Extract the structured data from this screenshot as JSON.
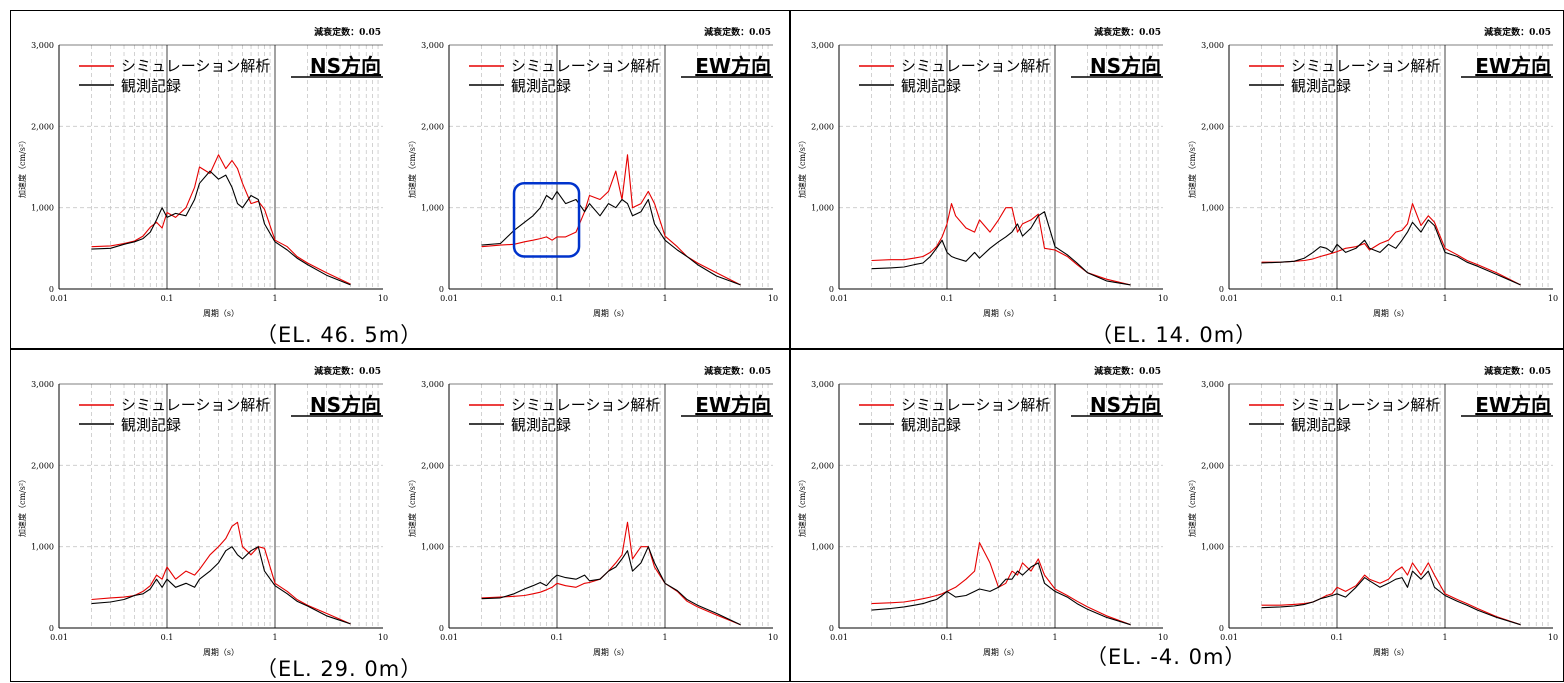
{
  "common": {
    "damping_label": "減衰定数：0.05",
    "ylabel": "加速度（cm/s²）",
    "xlabel": "周期（s）",
    "legend_sim": "シミュレーション解析",
    "legend_obs": "観測記録",
    "colors": {
      "simulation": "#e60000",
      "observed": "#000000",
      "highlight": "#0033cc"
    },
    "xscale": "log",
    "xlim": [
      0.01,
      10
    ],
    "ylim": [
      0,
      3000
    ],
    "x_ticks": [
      "0.01",
      "0.1",
      "1",
      "10"
    ],
    "y_ticks": [
      "0",
      "1,000",
      "2,000",
      "3,000"
    ]
  },
  "panels": [
    {
      "caption": "（EL. 46. 5m）"
    },
    {
      "caption": "（EL. 14. 0m）"
    },
    {
      "caption": "（EL. 29. 0m）"
    },
    {
      "caption": "（EL. -4. 0m）"
    }
  ],
  "chart_data": [
    {
      "type": "line",
      "panel": "EL. 46. 5m",
      "direction": "NS方向",
      "xscale": "log",
      "xlim": [
        0.01,
        10
      ],
      "ylim": [
        0,
        3000
      ],
      "series": [
        {
          "name": "シミュレーション解析",
          "x": [
            0.02,
            0.03,
            0.04,
            0.05,
            0.06,
            0.07,
            0.08,
            0.09,
            0.1,
            0.12,
            0.15,
            0.18,
            0.2,
            0.25,
            0.3,
            0.35,
            0.4,
            0.45,
            0.5,
            0.6,
            0.7,
            0.8,
            1.0,
            1.3,
            1.6,
            2.0,
            3.0,
            5.0
          ],
          "y": [
            520,
            530,
            560,
            590,
            650,
            760,
            820,
            750,
            940,
            880,
            1000,
            1250,
            1500,
            1420,
            1650,
            1480,
            1580,
            1480,
            1300,
            1050,
            1080,
            980,
            600,
            520,
            400,
            320,
            200,
            60
          ]
        },
        {
          "name": "観測記録",
          "x": [
            0.02,
            0.03,
            0.04,
            0.05,
            0.06,
            0.07,
            0.08,
            0.09,
            0.1,
            0.12,
            0.15,
            0.18,
            0.2,
            0.25,
            0.3,
            0.35,
            0.4,
            0.45,
            0.5,
            0.6,
            0.7,
            0.8,
            1.0,
            1.3,
            1.6,
            2.0,
            3.0,
            5.0
          ],
          "y": [
            490,
            500,
            550,
            580,
            620,
            700,
            850,
            1000,
            880,
            930,
            900,
            1100,
            1300,
            1450,
            1350,
            1400,
            1250,
            1050,
            1000,
            1150,
            1100,
            800,
            580,
            480,
            380,
            300,
            170,
            50
          ]
        }
      ]
    },
    {
      "type": "line",
      "panel": "EL. 46. 5m",
      "direction": "EW方向",
      "xscale": "log",
      "xlim": [
        0.01,
        10
      ],
      "ylim": [
        0,
        3000
      ],
      "series": [
        {
          "name": "シミュレーション解析",
          "x": [
            0.02,
            0.03,
            0.04,
            0.05,
            0.06,
            0.07,
            0.08,
            0.09,
            0.1,
            0.12,
            0.15,
            0.18,
            0.2,
            0.25,
            0.3,
            0.35,
            0.4,
            0.45,
            0.5,
            0.6,
            0.7,
            0.8,
            1.0,
            1.3,
            1.6,
            2.0,
            3.0,
            5.0
          ],
          "y": [
            520,
            540,
            550,
            580,
            600,
            620,
            640,
            600,
            640,
            640,
            700,
            950,
            1150,
            1100,
            1200,
            1450,
            1100,
            1650,
            1000,
            1050,
            1200,
            1050,
            650,
            520,
            400,
            320,
            200,
            50
          ]
        },
        {
          "name": "観測記録",
          "x": [
            0.02,
            0.03,
            0.04,
            0.05,
            0.06,
            0.07,
            0.08,
            0.09,
            0.1,
            0.12,
            0.15,
            0.18,
            0.2,
            0.25,
            0.3,
            0.35,
            0.4,
            0.45,
            0.5,
            0.6,
            0.7,
            0.8,
            1.0,
            1.3,
            1.6,
            2.0,
            3.0,
            5.0
          ],
          "y": [
            540,
            560,
            720,
            820,
            900,
            1000,
            1150,
            1100,
            1200,
            1050,
            1100,
            950,
            1050,
            900,
            1050,
            1000,
            1100,
            1050,
            900,
            950,
            1100,
            800,
            600,
            480,
            400,
            300,
            160,
            50
          ]
        }
      ]
    },
    {
      "type": "line",
      "panel": "EL. 14. 0m",
      "direction": "NS方向",
      "xscale": "log",
      "xlim": [
        0.01,
        10
      ],
      "ylim": [
        0,
        3000
      ],
      "series": [
        {
          "name": "シミュレーション解析",
          "x": [
            0.02,
            0.03,
            0.04,
            0.05,
            0.06,
            0.07,
            0.08,
            0.09,
            0.1,
            0.11,
            0.12,
            0.15,
            0.18,
            0.2,
            0.25,
            0.3,
            0.35,
            0.4,
            0.45,
            0.5,
            0.6,
            0.7,
            0.8,
            1.0,
            1.3,
            1.6,
            2.0,
            3.0,
            5.0
          ],
          "y": [
            350,
            360,
            360,
            380,
            400,
            450,
            520,
            640,
            800,
            1050,
            900,
            750,
            700,
            850,
            700,
            850,
            1000,
            1000,
            700,
            800,
            850,
            920,
            500,
            480,
            400,
            300,
            200,
            120,
            50
          ]
        },
        {
          "name": "観測記録",
          "x": [
            0.02,
            0.03,
            0.04,
            0.05,
            0.06,
            0.07,
            0.08,
            0.09,
            0.1,
            0.11,
            0.12,
            0.15,
            0.18,
            0.2,
            0.25,
            0.3,
            0.35,
            0.4,
            0.45,
            0.5,
            0.6,
            0.7,
            0.8,
            1.0,
            1.3,
            1.6,
            2.0,
            3.0,
            5.0
          ],
          "y": [
            250,
            260,
            270,
            300,
            320,
            400,
            500,
            600,
            450,
            400,
            380,
            340,
            450,
            380,
            500,
            580,
            640,
            700,
            800,
            650,
            750,
            900,
            950,
            520,
            420,
            320,
            200,
            100,
            50
          ]
        }
      ]
    },
    {
      "type": "line",
      "panel": "EL. 14. 0m",
      "direction": "EW方向",
      "xscale": "log",
      "xlim": [
        0.01,
        10
      ],
      "ylim": [
        0,
        3000
      ],
      "series": [
        {
          "name": "シミュレーション解析",
          "x": [
            0.02,
            0.03,
            0.04,
            0.05,
            0.06,
            0.07,
            0.08,
            0.09,
            0.1,
            0.12,
            0.15,
            0.18,
            0.2,
            0.25,
            0.3,
            0.35,
            0.4,
            0.45,
            0.5,
            0.6,
            0.7,
            0.8,
            1.0,
            1.3,
            1.6,
            2.0,
            3.0,
            5.0
          ],
          "y": [
            330,
            330,
            340,
            350,
            370,
            400,
            420,
            440,
            460,
            500,
            520,
            560,
            480,
            560,
            600,
            700,
            720,
            800,
            1050,
            780,
            900,
            820,
            500,
            420,
            350,
            300,
            200,
            50
          ]
        },
        {
          "name": "観測記録",
          "x": [
            0.02,
            0.03,
            0.04,
            0.05,
            0.06,
            0.07,
            0.08,
            0.09,
            0.1,
            0.12,
            0.15,
            0.18,
            0.2,
            0.25,
            0.3,
            0.35,
            0.4,
            0.45,
            0.5,
            0.6,
            0.7,
            0.8,
            1.0,
            1.3,
            1.6,
            2.0,
            3.0,
            5.0
          ],
          "y": [
            320,
            330,
            340,
            380,
            450,
            520,
            500,
            450,
            550,
            450,
            500,
            600,
            500,
            450,
            550,
            500,
            600,
            700,
            820,
            700,
            850,
            780,
            450,
            400,
            330,
            280,
            180,
            50
          ]
        }
      ]
    },
    {
      "type": "line",
      "panel": "EL. 29. 0m",
      "direction": "NS方向",
      "xscale": "log",
      "xlim": [
        0.01,
        10
      ],
      "ylim": [
        0,
        3000
      ],
      "series": [
        {
          "name": "シミュレーション解析",
          "x": [
            0.02,
            0.03,
            0.04,
            0.05,
            0.06,
            0.07,
            0.08,
            0.09,
            0.1,
            0.12,
            0.15,
            0.18,
            0.2,
            0.25,
            0.3,
            0.35,
            0.4,
            0.45,
            0.5,
            0.6,
            0.7,
            0.8,
            1.0,
            1.3,
            1.6,
            2.0,
            3.0,
            5.0
          ],
          "y": [
            350,
            370,
            380,
            400,
            450,
            520,
            650,
            600,
            750,
            600,
            700,
            650,
            720,
            900,
            1000,
            1100,
            1250,
            1300,
            1000,
            900,
            1000,
            980,
            550,
            450,
            350,
            280,
            180,
            50
          ]
        },
        {
          "name": "観測記録",
          "x": [
            0.02,
            0.03,
            0.04,
            0.05,
            0.06,
            0.07,
            0.08,
            0.09,
            0.1,
            0.12,
            0.15,
            0.18,
            0.2,
            0.25,
            0.3,
            0.35,
            0.4,
            0.45,
            0.5,
            0.6,
            0.7,
            0.8,
            1.0,
            1.3,
            1.6,
            2.0,
            3.0,
            5.0
          ],
          "y": [
            300,
            320,
            350,
            400,
            420,
            480,
            600,
            500,
            600,
            500,
            550,
            500,
            600,
            700,
            800,
            950,
            1000,
            900,
            850,
            950,
            1000,
            700,
            520,
            420,
            330,
            270,
            150,
            50
          ]
        }
      ]
    },
    {
      "type": "line",
      "panel": "EL. 29. 0m",
      "direction": "EW方向",
      "xscale": "log",
      "xlim": [
        0.01,
        10
      ],
      "ylim": [
        0,
        3000
      ],
      "series": [
        {
          "name": "シミュレーション解析",
          "x": [
            0.02,
            0.03,
            0.04,
            0.05,
            0.06,
            0.07,
            0.08,
            0.09,
            0.1,
            0.12,
            0.15,
            0.18,
            0.2,
            0.25,
            0.3,
            0.35,
            0.4,
            0.45,
            0.5,
            0.6,
            0.7,
            0.8,
            1.0,
            1.3,
            1.6,
            2.0,
            3.0,
            5.0
          ],
          "y": [
            370,
            380,
            390,
            400,
            420,
            440,
            470,
            500,
            550,
            520,
            500,
            550,
            560,
            600,
            700,
            800,
            900,
            1300,
            850,
            1000,
            1000,
            750,
            550,
            450,
            330,
            260,
            160,
            40
          ]
        },
        {
          "name": "観測記録",
          "x": [
            0.02,
            0.03,
            0.04,
            0.05,
            0.06,
            0.07,
            0.08,
            0.09,
            0.1,
            0.12,
            0.15,
            0.18,
            0.2,
            0.25,
            0.3,
            0.35,
            0.4,
            0.45,
            0.5,
            0.6,
            0.7,
            0.8,
            1.0,
            1.3,
            1.6,
            2.0,
            3.0,
            5.0
          ],
          "y": [
            360,
            370,
            420,
            480,
            520,
            560,
            520,
            600,
            650,
            620,
            600,
            650,
            580,
            600,
            700,
            750,
            850,
            950,
            700,
            800,
            1000,
            800,
            550,
            460,
            350,
            280,
            180,
            40
          ]
        }
      ]
    },
    {
      "type": "line",
      "panel": "EL. -4. 0m",
      "direction": "NS方向",
      "xscale": "log",
      "xlim": [
        0.01,
        10
      ],
      "ylim": [
        0,
        3000
      ],
      "series": [
        {
          "name": "シミュレーション解析",
          "x": [
            0.02,
            0.03,
            0.04,
            0.05,
            0.06,
            0.07,
            0.08,
            0.09,
            0.1,
            0.12,
            0.15,
            0.18,
            0.2,
            0.25,
            0.3,
            0.35,
            0.4,
            0.45,
            0.5,
            0.6,
            0.7,
            0.8,
            1.0,
            1.3,
            1.6,
            2.0,
            3.0,
            5.0
          ],
          "y": [
            300,
            310,
            320,
            340,
            360,
            380,
            400,
            420,
            450,
            500,
            600,
            700,
            1050,
            800,
            500,
            550,
            700,
            650,
            800,
            700,
            850,
            650,
            480,
            400,
            330,
            260,
            150,
            40
          ]
        },
        {
          "name": "観測記録",
          "x": [
            0.02,
            0.03,
            0.04,
            0.05,
            0.06,
            0.07,
            0.08,
            0.09,
            0.1,
            0.12,
            0.15,
            0.18,
            0.2,
            0.25,
            0.3,
            0.35,
            0.4,
            0.45,
            0.5,
            0.6,
            0.7,
            0.8,
            1.0,
            1.3,
            1.6,
            2.0,
            3.0,
            5.0
          ],
          "y": [
            220,
            240,
            260,
            280,
            300,
            330,
            350,
            400,
            450,
            380,
            400,
            450,
            480,
            450,
            500,
            600,
            600,
            700,
            650,
            750,
            800,
            550,
            450,
            380,
            300,
            230,
            130,
            40
          ]
        }
      ]
    },
    {
      "type": "line",
      "panel": "EL. -4. 0m",
      "direction": "EW方向",
      "xscale": "log",
      "xlim": [
        0.01,
        10
      ],
      "ylim": [
        0,
        3000
      ],
      "series": [
        {
          "name": "シミュレーション解析",
          "x": [
            0.02,
            0.03,
            0.04,
            0.05,
            0.06,
            0.07,
            0.08,
            0.09,
            0.1,
            0.12,
            0.15,
            0.18,
            0.2,
            0.25,
            0.3,
            0.35,
            0.4,
            0.45,
            0.5,
            0.6,
            0.7,
            0.8,
            1.0,
            1.3,
            1.6,
            2.0,
            3.0,
            5.0
          ],
          "y": [
            280,
            280,
            290,
            300,
            320,
            360,
            400,
            420,
            500,
            450,
            520,
            650,
            600,
            550,
            600,
            700,
            750,
            650,
            800,
            650,
            800,
            650,
            420,
            350,
            300,
            240,
            140,
            40
          ]
        },
        {
          "name": "観測記録",
          "x": [
            0.02,
            0.03,
            0.04,
            0.05,
            0.06,
            0.07,
            0.08,
            0.09,
            0.1,
            0.12,
            0.15,
            0.18,
            0.2,
            0.25,
            0.3,
            0.35,
            0.4,
            0.45,
            0.5,
            0.6,
            0.7,
            0.8,
            1.0,
            1.3,
            1.6,
            2.0,
            3.0,
            5.0
          ],
          "y": [
            250,
            260,
            270,
            290,
            320,
            360,
            380,
            400,
            420,
            380,
            500,
            620,
            580,
            500,
            550,
            600,
            620,
            500,
            700,
            600,
            700,
            500,
            400,
            330,
            280,
            220,
            130,
            40
          ]
        }
      ]
    }
  ]
}
